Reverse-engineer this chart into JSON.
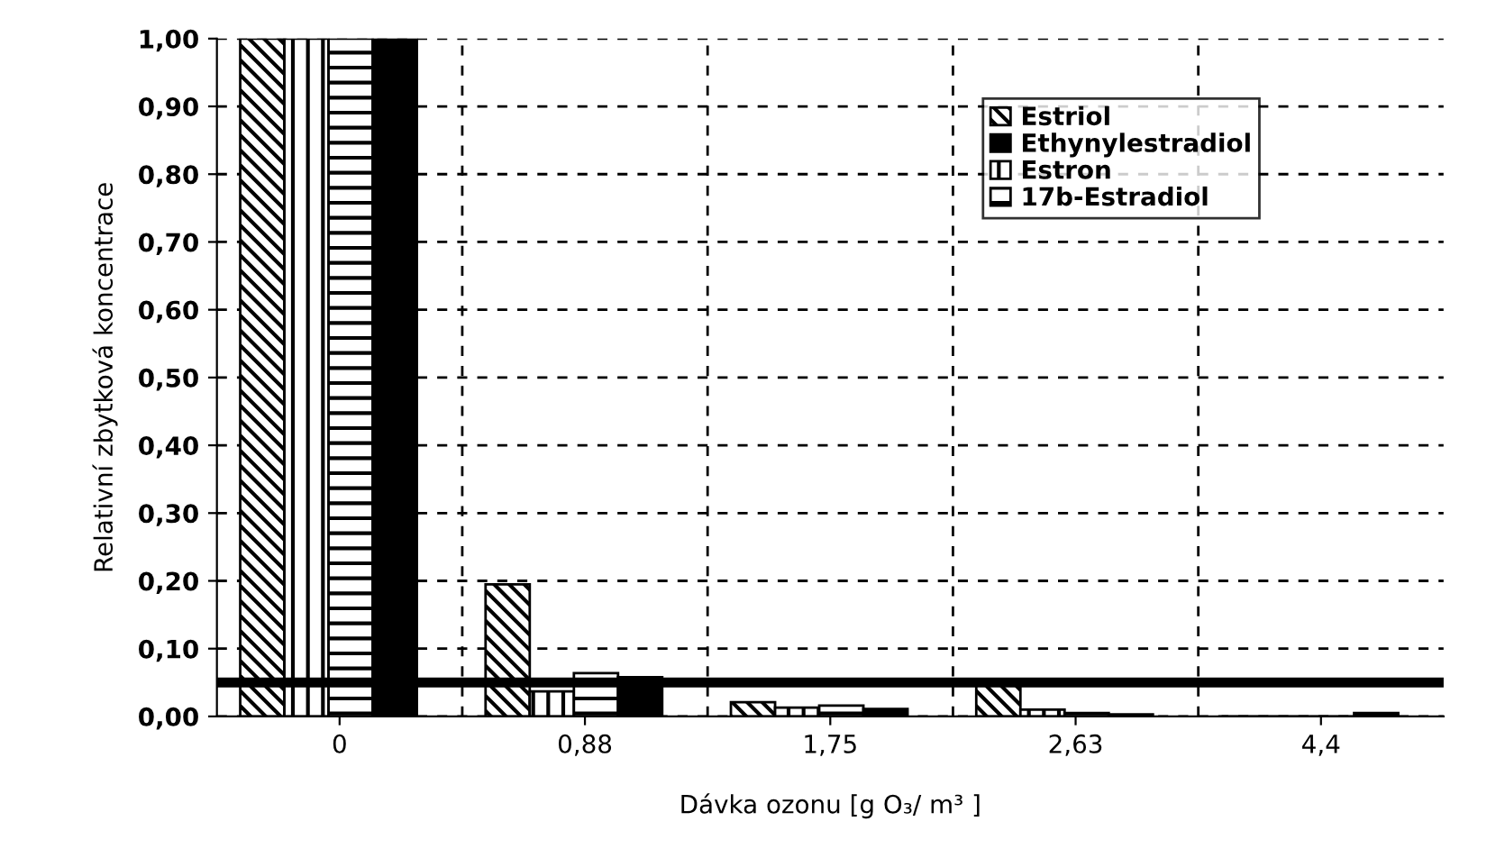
{
  "chart_data": {
    "type": "bar",
    "xlabel": "Dávka ozonu [g O₃/ m³ ]",
    "ylabel": "Relativní zbytková koncentrace",
    "categories": [
      "0",
      "0,88",
      "1,75",
      "2,63",
      "4,4"
    ],
    "series": [
      {
        "name": "Estriol",
        "color": "#000000",
        "values": [
          1.0,
          0.195,
          0.021,
          0.05,
          0
        ]
      },
      {
        "name": "Estron",
        "color": "#000000",
        "values": [
          1.0,
          0.037,
          0.013,
          0.01,
          0
        ]
      },
      {
        "name": "17b-Estradiol",
        "color": "#000000",
        "values": [
          1.0,
          0.064,
          0.016,
          0.005,
          0
        ]
      },
      {
        "name": "Ethynylestradiol",
        "color": "#000000",
        "values": [
          1.0,
          0.058,
          0.011,
          0.003,
          0.005
        ]
      }
    ],
    "ylim": [
      0,
      1.0
    ],
    "yticks": [
      {
        "value": 0,
        "label": "0,00"
      },
      {
        "value": 0.1,
        "label": "0,10"
      },
      {
        "value": 0.2,
        "label": "0,20"
      },
      {
        "value": 0.3,
        "label": "0,30"
      },
      {
        "value": 0.4,
        "label": "0,40"
      },
      {
        "value": 0.5,
        "label": "0,50"
      },
      {
        "value": 0.6,
        "label": "0,60"
      },
      {
        "value": 0.7,
        "label": "0,70"
      },
      {
        "value": 0.8,
        "label": "0,80"
      },
      {
        "value": 0.9,
        "label": "0,90"
      },
      {
        "value": 1.0,
        "label": "1,00"
      }
    ],
    "ref_lines": [
      {
        "axis": "y",
        "value": 0.05,
        "label": null,
        "color": "#000000"
      }
    ],
    "grid": true,
    "legend": "top right"
  }
}
